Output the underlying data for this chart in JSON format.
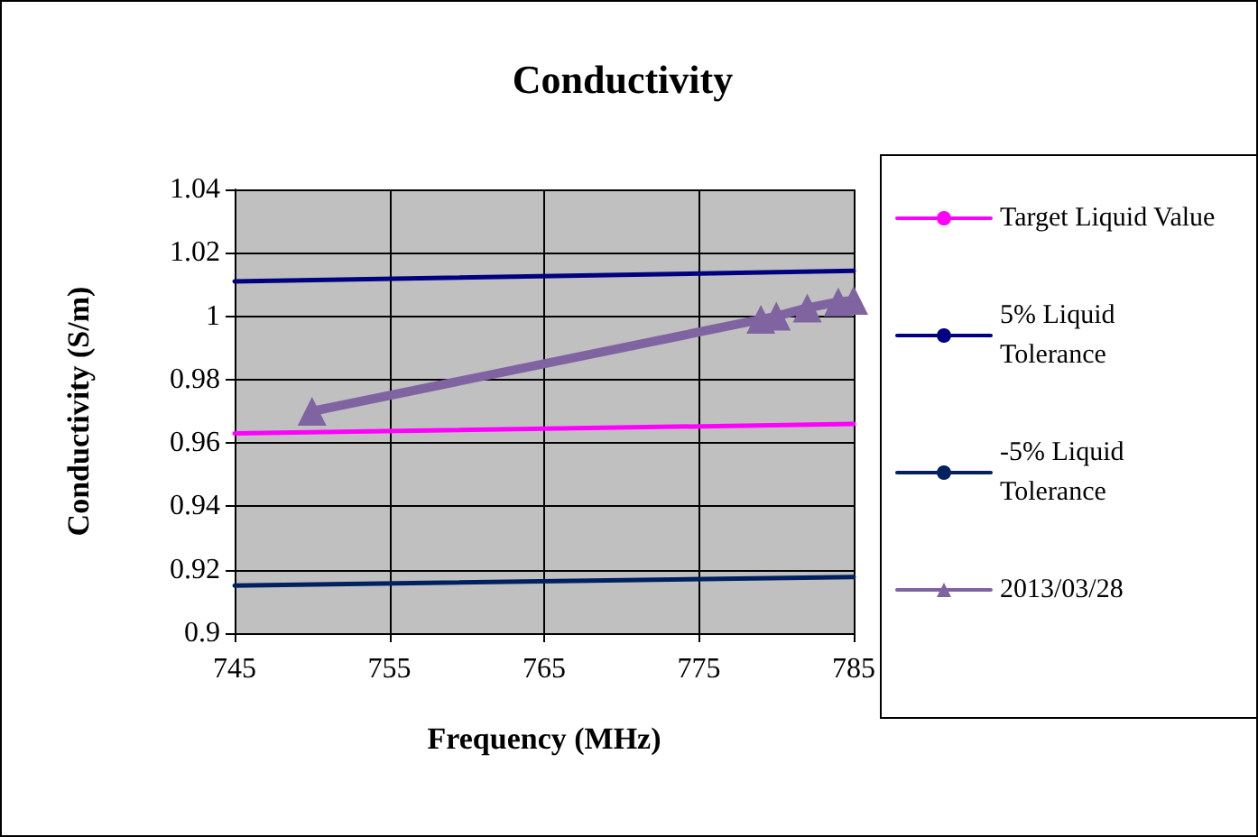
{
  "chart_data": {
    "type": "line",
    "title": "Conductivity",
    "xlabel": "Frequency (MHz)",
    "ylabel": "Conductivity (S/m)",
    "xlim": [
      745,
      785
    ],
    "xticks": [
      745,
      755,
      765,
      775,
      785
    ],
    "ylim": [
      0.9,
      1.04
    ],
    "yticks": [
      0.9,
      0.92,
      0.94,
      0.96,
      0.98,
      1,
      1.02,
      1.04
    ],
    "grid": true,
    "legend": "right",
    "series": [
      {
        "name": "Target Liquid Value",
        "color": "#ff00ff",
        "marker": "none",
        "x": [
          745,
          785
        ],
        "values": [
          0.963,
          0.966
        ]
      },
      {
        "name": "5% Liquid Tolerance",
        "color": "#000080",
        "marker": "none",
        "x": [
          745,
          785
        ],
        "values": [
          1.011,
          1.0143
        ]
      },
      {
        "name": "-5% Liquid Tolerance",
        "color": "#002060",
        "marker": "none",
        "x": [
          745,
          785
        ],
        "values": [
          0.915,
          0.9177
        ]
      },
      {
        "name": "2013/03/28",
        "color": "#8064a2",
        "marker": "triangle",
        "x": [
          750,
          779,
          780,
          782,
          784,
          785
        ],
        "values": [
          0.97,
          0.999,
          1.0,
          1.0026,
          1.0045,
          1.005
        ]
      }
    ]
  }
}
